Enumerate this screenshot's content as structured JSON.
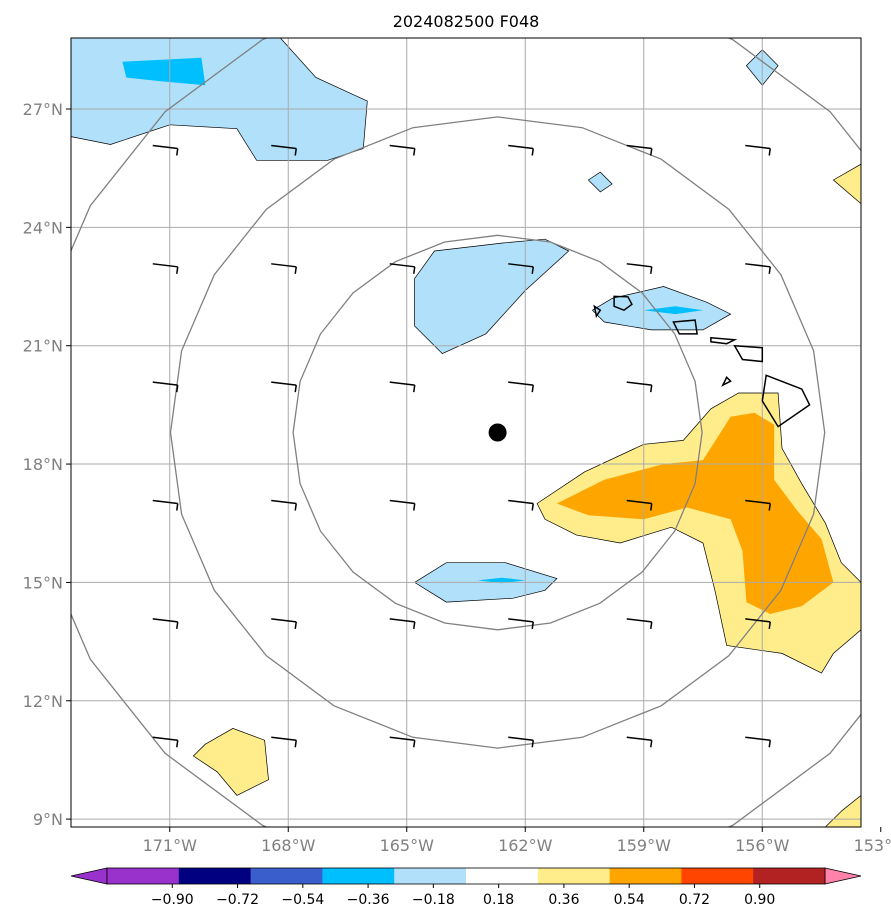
{
  "chart_data": {
    "type": "map",
    "title": "2024082500 F048",
    "projection": "lat-lon",
    "xlim": [
      -173.5,
      -153.5
    ],
    "ylim": [
      8.8,
      28.8
    ],
    "xticks": [
      -171,
      -168,
      -165,
      -162,
      -159,
      -156,
      -153
    ],
    "xtick_labels": [
      "171°W",
      "168°W",
      "165°W",
      "162°W",
      "159°W",
      "156°W",
      "153°W"
    ],
    "yticks": [
      9,
      12,
      15,
      18,
      21,
      24,
      27
    ],
    "ytick_labels": [
      "9°N",
      "12°N",
      "15°N",
      "18°N",
      "21°N",
      "24°N",
      "27°N"
    ],
    "grid": true,
    "center_marker": {
      "lon": -162.7,
      "lat": 18.8
    },
    "range_rings_deg": [
      5,
      8,
      11.5
    ],
    "colorbar": {
      "levels": [
        -0.9,
        -0.72,
        -0.54,
        -0.36,
        -0.18,
        0.18,
        0.36,
        0.54,
        0.72,
        0.9
      ],
      "tick_labels": [
        "−0.90",
        "−0.72",
        "−0.54",
        "−0.36",
        "−0.18",
        "0.18",
        "0.36",
        "0.54",
        "0.72",
        "0.90"
      ],
      "colors": [
        "#9932CC",
        "#000080",
        "#3A5FCD",
        "#00BFFF",
        "#B0E0FA",
        "#FFFFFF",
        "#FFEC8B",
        "#FFA500",
        "#FF4500",
        "#B22222",
        "#FF82AB"
      ],
      "extend": "both"
    },
    "filled_regions": [
      {
        "level": -0.18,
        "color": "#B0E0FA",
        "polygon": [
          [
            -173.5,
            28.8
          ],
          [
            -168.2,
            28.8
          ],
          [
            -167.3,
            27.8
          ],
          [
            -166,
            27.2
          ],
          [
            -166.1,
            26
          ],
          [
            -167,
            25.7
          ],
          [
            -168.8,
            25.7
          ],
          [
            -169.3,
            26.5
          ],
          [
            -171,
            26.6
          ],
          [
            -172.5,
            26.1
          ],
          [
            -173.5,
            26.3
          ]
        ]
      },
      {
        "level": -0.36,
        "color": "#00BFFF",
        "polygon": [
          [
            -172.2,
            28.2
          ],
          [
            -170.2,
            28.3
          ],
          [
            -170.1,
            27.6
          ],
          [
            -171.2,
            27.7
          ],
          [
            -172.1,
            27.8
          ]
        ]
      },
      {
        "level": -0.18,
        "color": "#B0E0FA",
        "polygon": [
          [
            -164.3,
            23.4
          ],
          [
            -162.6,
            23.6
          ],
          [
            -161.5,
            23.7
          ],
          [
            -160.9,
            23.4
          ],
          [
            -162,
            22.4
          ],
          [
            -163,
            21.3
          ],
          [
            -164.1,
            20.8
          ],
          [
            -164.8,
            21.5
          ],
          [
            -164.8,
            22.7
          ]
        ]
      },
      {
        "level": -0.18,
        "color": "#B0E0FA",
        "polygon": [
          [
            -159.8,
            22.2
          ],
          [
            -158.5,
            22.5
          ],
          [
            -157.4,
            22.1
          ],
          [
            -156.8,
            21.8
          ],
          [
            -157.5,
            21.4
          ],
          [
            -158.8,
            21.4
          ],
          [
            -160,
            21.6
          ],
          [
            -160.3,
            21.9
          ]
        ]
      },
      {
        "level": -0.36,
        "color": "#00BFFF",
        "polygon": [
          [
            -159,
            21.9
          ],
          [
            -158.2,
            22
          ],
          [
            -157.5,
            21.9
          ],
          [
            -158.2,
            21.8
          ]
        ]
      },
      {
        "level": -0.18,
        "color": "#B0E0FA",
        "polygon": [
          [
            -160.4,
            25.2
          ],
          [
            -160.1,
            24.9
          ],
          [
            -159.8,
            25.1
          ],
          [
            -160.1,
            25.4
          ]
        ]
      },
      {
        "level": -0.18,
        "color": "#B0E0FA",
        "polygon": [
          [
            -156.4,
            28.1
          ],
          [
            -156,
            28.5
          ],
          [
            -155.6,
            28.1
          ],
          [
            -156,
            27.6
          ]
        ]
      },
      {
        "level": -0.18,
        "color": "#B0E0FA",
        "polygon": [
          [
            -164.8,
            15
          ],
          [
            -164,
            15.5
          ],
          [
            -162.5,
            15.5
          ],
          [
            -161.2,
            15.1
          ],
          [
            -161.5,
            14.8
          ],
          [
            -162.3,
            14.6
          ],
          [
            -164,
            14.5
          ]
        ]
      },
      {
        "level": -0.36,
        "color": "#00BFFF",
        "polygon": [
          [
            -163.2,
            15.05
          ],
          [
            -162.6,
            15.12
          ],
          [
            -162,
            15.05
          ],
          [
            -162.6,
            14.98
          ]
        ]
      },
      {
        "level": 0.18,
        "color": "#FFEC8B",
        "polygon": [
          [
            -161.7,
            17
          ],
          [
            -160.5,
            17.8
          ],
          [
            -159,
            18.5
          ],
          [
            -158,
            18.6
          ],
          [
            -157.3,
            19.4
          ],
          [
            -156.6,
            19.8
          ],
          [
            -155.6,
            19.8
          ],
          [
            -155.5,
            18.4
          ],
          [
            -155,
            17.5
          ],
          [
            -154.4,
            16.5
          ],
          [
            -154,
            15.5
          ],
          [
            -153.5,
            15
          ],
          [
            -153.5,
            13.8
          ],
          [
            -154.2,
            13.2
          ],
          [
            -154.5,
            12.7
          ],
          [
            -155.5,
            13.2
          ],
          [
            -156.9,
            13.4
          ],
          [
            -157.2,
            14.8
          ],
          [
            -157.5,
            16
          ],
          [
            -158.3,
            16.4
          ],
          [
            -159.6,
            16
          ],
          [
            -160.7,
            16.2
          ],
          [
            -161.5,
            16.6
          ]
        ]
      },
      {
        "level": 0.36,
        "color": "#FFA500",
        "polygon": [
          [
            -161.2,
            17
          ],
          [
            -160,
            17.6
          ],
          [
            -158.5,
            18
          ],
          [
            -157.5,
            18.1
          ],
          [
            -156.8,
            19.2
          ],
          [
            -156.2,
            19.3
          ],
          [
            -155.7,
            19
          ],
          [
            -155.7,
            17.6
          ],
          [
            -155.1,
            16.8
          ],
          [
            -154.5,
            16.1
          ],
          [
            -154.2,
            15
          ],
          [
            -155,
            14.4
          ],
          [
            -155.8,
            14.2
          ],
          [
            -156.4,
            14.5
          ],
          [
            -156.5,
            15.8
          ],
          [
            -156.8,
            16.6
          ],
          [
            -157.9,
            16.9
          ],
          [
            -159,
            16.6
          ],
          [
            -160.4,
            16.7
          ]
        ]
      },
      {
        "level": 0.18,
        "color": "#FFEC8B",
        "polygon": [
          [
            -170.1,
            10.9
          ],
          [
            -169.4,
            11.3
          ],
          [
            -168.6,
            11
          ],
          [
            -168.5,
            10
          ],
          [
            -169.3,
            9.6
          ],
          [
            -169.8,
            10.2
          ],
          [
            -170.4,
            10.6
          ]
        ]
      },
      {
        "level": 0.18,
        "color": "#FFEC8B",
        "polygon": [
          [
            -154,
            9.2
          ],
          [
            -153.5,
            9.6
          ],
          [
            -153.5,
            8.8
          ],
          [
            -154.4,
            8.8
          ]
        ]
      },
      {
        "level": 0.18,
        "color": "#FFEC8B",
        "polygon": [
          [
            -154.2,
            25.2
          ],
          [
            -153.5,
            25.6
          ],
          [
            -153.5,
            24.6
          ]
        ]
      }
    ],
    "wind_barbs": [
      {
        "lon": -171,
        "lat": 26
      },
      {
        "lon": -168,
        "lat": 26
      },
      {
        "lon": -165,
        "lat": 26
      },
      {
        "lon": -162,
        "lat": 26
      },
      {
        "lon": -159,
        "lat": 26
      },
      {
        "lon": -156,
        "lat": 26
      },
      {
        "lon": -153,
        "lat": 26
      },
      {
        "lon": -171,
        "lat": 23
      },
      {
        "lon": -168,
        "lat": 23
      },
      {
        "lon": -165,
        "lat": 23
      },
      {
        "lon": -162,
        "lat": 23
      },
      {
        "lon": -159,
        "lat": 23
      },
      {
        "lon": -156,
        "lat": 23
      },
      {
        "lon": -153,
        "lat": 23
      },
      {
        "lon": -171,
        "lat": 20
      },
      {
        "lon": -168,
        "lat": 20
      },
      {
        "lon": -165,
        "lat": 20
      },
      {
        "lon": -162,
        "lat": 20
      },
      {
        "lon": -159,
        "lat": 20
      },
      {
        "lon": -153,
        "lat": 20
      },
      {
        "lon": -171,
        "lat": 17
      },
      {
        "lon": -168,
        "lat": 17
      },
      {
        "lon": -165,
        "lat": 17
      },
      {
        "lon": -162,
        "lat": 17
      },
      {
        "lon": -159,
        "lat": 17
      },
      {
        "lon": -156,
        "lat": 17
      },
      {
        "lon": -153,
        "lat": 17
      },
      {
        "lon": -171,
        "lat": 14
      },
      {
        "lon": -168,
        "lat": 14
      },
      {
        "lon": -165,
        "lat": 14
      },
      {
        "lon": -162,
        "lat": 14
      },
      {
        "lon": -159,
        "lat": 14
      },
      {
        "lon": -156,
        "lat": 14
      },
      {
        "lon": -153,
        "lat": 14
      },
      {
        "lon": -171,
        "lat": 11
      },
      {
        "lon": -168,
        "lat": 11
      },
      {
        "lon": -165,
        "lat": 11
      },
      {
        "lon": -162,
        "lat": 11
      },
      {
        "lon": -159,
        "lat": 11
      },
      {
        "lon": -156,
        "lat": 11
      },
      {
        "lon": -153,
        "lat": 11
      }
    ],
    "islands": [
      [
        [
          -159.75,
          22.25
        ],
        [
          -159.4,
          22.24
        ],
        [
          -159.3,
          22.05
        ],
        [
          -159.5,
          21.9
        ],
        [
          -159.75,
          22
        ]
      ],
      [
        [
          -158.25,
          21.6
        ],
        [
          -157.7,
          21.65
        ],
        [
          -157.65,
          21.3
        ],
        [
          -158.1,
          21.3
        ]
      ],
      [
        [
          -157.3,
          21.2
        ],
        [
          -156.7,
          21.15
        ],
        [
          -156.9,
          21.05
        ],
        [
          -157.3,
          21.1
        ]
      ],
      [
        [
          -156.7,
          21
        ],
        [
          -156.0,
          20.95
        ],
        [
          -156.0,
          20.6
        ],
        [
          -156.5,
          20.65
        ]
      ],
      [
        [
          -155.9,
          20.25
        ],
        [
          -155.0,
          19.9
        ],
        [
          -154.8,
          19.5
        ],
        [
          -155.6,
          18.95
        ],
        [
          -156.0,
          19.6
        ]
      ],
      [
        [
          -160.25,
          22
        ],
        [
          -160.1,
          21.9
        ],
        [
          -160.2,
          21.75
        ]
      ],
      [
        [
          -156.9,
          20.2
        ],
        [
          -156.8,
          20.1
        ],
        [
          -157.0,
          20.0
        ]
      ]
    ]
  }
}
